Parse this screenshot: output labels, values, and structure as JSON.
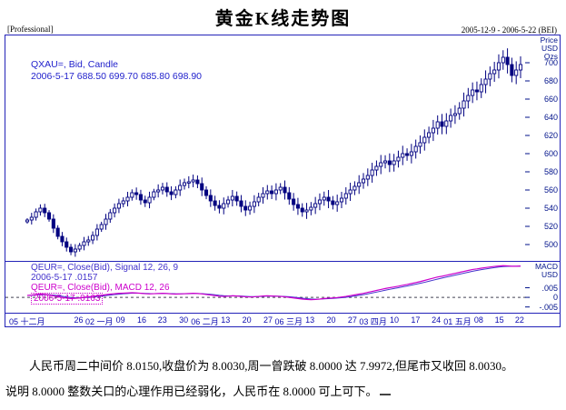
{
  "header": {
    "title": "黄金K线走势图",
    "mode_label": "[Professional]",
    "date_range": "2005-12-9 - 2006-5-22 (BEI)"
  },
  "chart_data": [
    {
      "type": "candlestick",
      "symbol_legend": "QXAU=, Bid, Candle",
      "quote_legend": "2006-5-17 688.50 699.70 685.80 698.90",
      "ylabel": [
        "Price",
        "USD",
        "Ozs"
      ],
      "ylim": [
        482,
        730
      ],
      "yticks": [
        700,
        680,
        660,
        640,
        620,
        600,
        580,
        560,
        540,
        520,
        500
      ],
      "x_start": "2005-12-9",
      "x_end": "2006-5-22",
      "open_first": 525,
      "closes": [
        527,
        530,
        536,
        540,
        535,
        528,
        518,
        509,
        503,
        497,
        492,
        495,
        499,
        503,
        505,
        510,
        517,
        522,
        528,
        535,
        540,
        545,
        548,
        552,
        557,
        555,
        549,
        546,
        552,
        558,
        560,
        563,
        558,
        555,
        560,
        565,
        568,
        569,
        571,
        567,
        560,
        554,
        548,
        543,
        540,
        545,
        549,
        553,
        548,
        542,
        538,
        542,
        547,
        552,
        556,
        559,
        556,
        560,
        563,
        557,
        550,
        544,
        540,
        536,
        538,
        541,
        545,
        549,
        552,
        548,
        544,
        547,
        551,
        556,
        560,
        564,
        568,
        572,
        576,
        582,
        586,
        590,
        592,
        588,
        592,
        596,
        600,
        598,
        602,
        608,
        612,
        618,
        623,
        628,
        635,
        630,
        636,
        642,
        644,
        650,
        658,
        664,
        670,
        668,
        676,
        682,
        688,
        692,
        700,
        706,
        698,
        686,
        692,
        698
      ]
    },
    {
      "type": "line",
      "series": [
        {
          "name": "QEUR=, Close(Bid), Signal 12, 26, 9",
          "current_label": "2006-5-17 .0157",
          "color": "#4433cc"
        },
        {
          "name": "QEUR=, Close(Bid), MACD 12, 26",
          "current_label": "2006-5-17 .0163",
          "color": "#cc00cc"
        }
      ],
      "ylabel": [
        "MACD",
        "USD"
      ],
      "ylim": [
        -0.008,
        0.0185
      ],
      "yticks": [
        0.005,
        0,
        -0.005
      ],
      "ytick_labels": [
        ".005",
        "0",
        "-.005"
      ],
      "macd_values": [
        0.001,
        0.0012,
        0.0015,
        0.0018,
        0.0016,
        0.0012,
        0.0008,
        0.0004,
        0,
        -0.0004,
        -0.0006,
        -0.0005,
        -0.0003,
        0,
        0.0003,
        0.0005,
        0.0008,
        0.0011,
        0.0014,
        0.0017,
        0.0019,
        0.0021,
        0.0022,
        0.0023,
        0.0024,
        0.0023,
        0.0021,
        0.0019,
        0.0018,
        0.0019,
        0.002,
        0.0021,
        0.002,
        0.0018,
        0.0017,
        0.0018,
        0.0019,
        0.002,
        0.0021,
        0.002,
        0.0018,
        0.0015,
        0.0012,
        0.0009,
        0.0006,
        0.0005,
        0.0006,
        0.0008,
        0.0007,
        0.0005,
        0.0003,
        0.0002,
        0.0003,
        0.0005,
        0.0007,
        0.0008,
        0.0007,
        0.0006,
        0.0005,
        0.0003,
        0,
        -0.0003,
        -0.0006,
        -0.0009,
        -0.0011,
        -0.0012,
        -0.0011,
        -0.0009,
        -0.0006,
        -0.0004,
        -0.0003,
        -0.0001,
        0.0002,
        0.0005,
        0.0009,
        0.0013,
        0.0017,
        0.0021,
        0.0026,
        0.0031,
        0.0036,
        0.0041,
        0.0046,
        0.005,
        0.0054,
        0.0058,
        0.0063,
        0.0067,
        0.0072,
        0.0077,
        0.0082,
        0.0088,
        0.0094,
        0.01,
        0.0106,
        0.011,
        0.0115,
        0.012,
        0.0125,
        0.013,
        0.0135,
        0.014,
        0.0145,
        0.0148,
        0.0152,
        0.0155,
        0.0158,
        0.0161,
        0.0163,
        0.0165,
        0.0164,
        0.0162,
        0.0162,
        0.0163
      ]
    }
  ],
  "xaxis": {
    "ticks": [
      {
        "label": "05 十二月",
        "pos": 0
      },
      {
        "label": "26",
        "pos": 0.104
      },
      {
        "label": "02 一月",
        "pos": 0.146
      },
      {
        "label": "09",
        "pos": 0.189
      },
      {
        "label": "16",
        "pos": 0.232
      },
      {
        "label": "23",
        "pos": 0.274
      },
      {
        "label": "30",
        "pos": 0.317
      },
      {
        "label": "06 二月",
        "pos": 0.36
      },
      {
        "label": "13",
        "pos": 0.402
      },
      {
        "label": "20",
        "pos": 0.445
      },
      {
        "label": "27",
        "pos": 0.488
      },
      {
        "label": "06 三月",
        "pos": 0.53
      },
      {
        "label": "13",
        "pos": 0.573
      },
      {
        "label": "20",
        "pos": 0.616
      },
      {
        "label": "27",
        "pos": 0.659
      },
      {
        "label": "03 四月",
        "pos": 0.701
      },
      {
        "label": "10",
        "pos": 0.744
      },
      {
        "label": "17",
        "pos": 0.787
      },
      {
        "label": "24",
        "pos": 0.829
      },
      {
        "label": "01 五月",
        "pos": 0.872
      },
      {
        "label": "08",
        "pos": 0.915
      },
      {
        "label": "15",
        "pos": 0.957
      },
      {
        "label": "22",
        "pos": 0.998
      }
    ]
  },
  "notes": {
    "line1": "人民币周二中间价 8.0150,收盘价为 8.0030,周一曾跌破 8.0000 达 7.9972,但尾市又收回 8.0030。",
    "line2": "说明 8.0000 整数关口的心理作用已经弱化，人民币在 8.0000 可上可下。"
  },
  "colors": {
    "axis": "#00128a",
    "candle": "#000080",
    "candle_up_fill": "#ffffff",
    "macd": "#cc00cc",
    "signal": "#4433cc",
    "border": "#2323b8"
  }
}
